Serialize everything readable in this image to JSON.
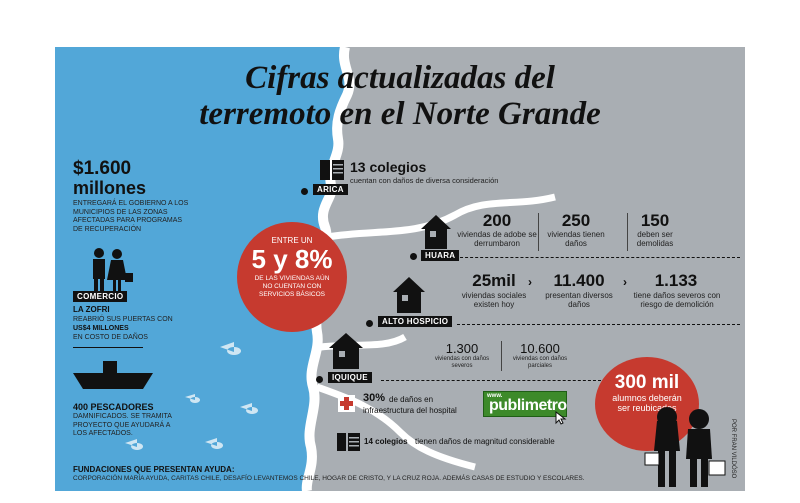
{
  "title": {
    "line1": "Cifras actualizadas del",
    "line2": "terremoto en el Norte Grande"
  },
  "left": {
    "amount": "$1.600",
    "amount_unit": "millones",
    "amount_desc": "ENTREGARÁ EL GOBIERNO A LOS MUNICIPIOS DE LAS ZONAS AFECTADAS PARA PROGRAMAS DE RECUPERACIÓN",
    "commerce_tag": "COMERCIO",
    "zofri_title": "LA ZOFRI",
    "zofri_desc": "REABRIÓ SUS PUERTAS CON",
    "zofri_amount": "US$4 MILLONES",
    "zofri_desc2": "EN COSTO DE DAÑOS",
    "fishers_title": "400 PESCADORES",
    "fishers_desc": "DAMNIFICADOS. SE TRAMITA PROYECTO QUE AYUDARÁ A LOS AFECTADOS.",
    "foundations_title": "FUNDACIONES QUE PRESENTAN AYUDA:",
    "foundations_desc": "CORPORACIÓN MARÍA AYUDA, CARITAS CHILE, DESAFÍO LEVANTEMOS CHILE, HOGAR DE CRISTO, Y LA CRUZ ROJA. ADEMÁS CASAS DE ESTUDIO Y ESCOLARES."
  },
  "circle_services": {
    "top": "ENTRE UN",
    "value": "5 y 8%",
    "bottom": "DE LAS VIVIENDAS AÚN NO CUENTAN CON SERVICIOS BÁSICOS"
  },
  "arica": {
    "tag": "ARICA",
    "schools": "13 colegios",
    "schools_desc": "cuentan con daños de diversa consideración"
  },
  "huara": {
    "tag": "HUARA",
    "stats": [
      {
        "value": "200",
        "label": "viviendas de adobe se derrumbaron"
      },
      {
        "value": "250",
        "label": "viviendas tienen daños"
      },
      {
        "value": "150",
        "label": "deben ser demolidas"
      }
    ]
  },
  "alto_hospicio": {
    "tag": "ALTO HOSPICIO",
    "stats": [
      {
        "value": "25mil",
        "label": "viviendas sociales existen hoy"
      },
      {
        "value": "11.400",
        "label": "presentan diversos daños"
      },
      {
        "value": "1.133",
        "label": "tiene daños severos con riesgo de demolición"
      }
    ]
  },
  "iquique": {
    "tag": "IQUIQUE",
    "stats": [
      {
        "value": "1.300",
        "label": "viviendas con daños severos"
      },
      {
        "value": "10.600",
        "label": "viviendas con daños parciales"
      }
    ],
    "hospital_value": "30%",
    "hospital_desc1": "de daños en",
    "hospital_desc2": "infraestructura del hospital",
    "schools_value": "14 colegios",
    "schools_desc": "tienen daños de magnitud considerable"
  },
  "students_circle": {
    "value": "300 mil",
    "label": "alumnos deberán ser reubicados"
  },
  "logo": {
    "text": "publimetro",
    "prefix": "www."
  },
  "credit": "POR FRAN VILDÓSO",
  "colors": {
    "sea": "#52a7d8",
    "land": "#a9aeb3",
    "red": "#c63a2f",
    "coast": "#ffffff"
  }
}
